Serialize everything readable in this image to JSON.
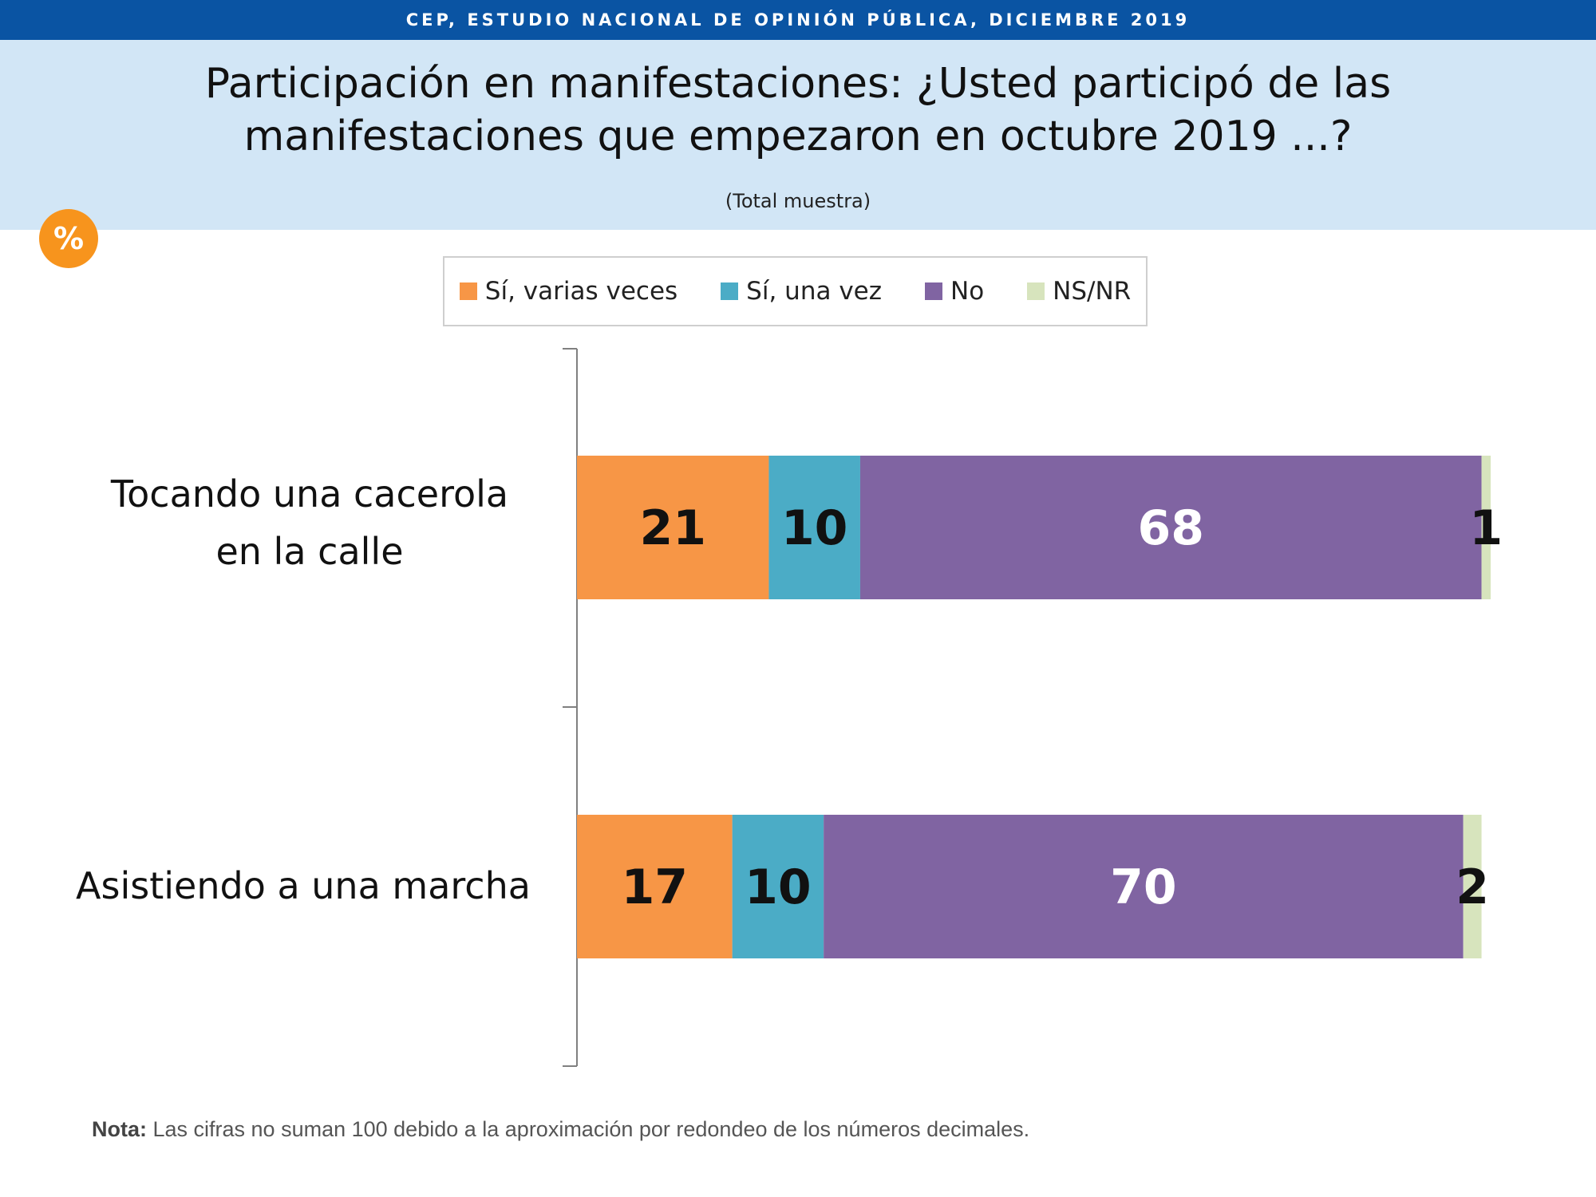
{
  "header": {
    "top_bar": "CEP, ESTUDIO NACIONAL DE OPINIÓN PÚBLICA, DICIEMBRE 2019",
    "title": "Participación en manifestaciones: ¿Usted participó de las manifestaciones que empezaron en octubre 2019 ...?",
    "subtitle": "(Total muestra)",
    "badge": "%"
  },
  "legend": [
    {
      "label": "Sí, varias veces",
      "color": "#f79646"
    },
    {
      "label": "Sí, una vez",
      "color": "#4bacc6"
    },
    {
      "label": "No",
      "color": "#8064a2"
    },
    {
      "label": "NS/NR",
      "color": "#d7e4bd"
    }
  ],
  "chart_data": {
    "type": "bar",
    "orientation": "horizontal",
    "stacked": true,
    "categories": [
      "Tocando una cacerola en la calle",
      "Asistiendo a una marcha"
    ],
    "series": [
      {
        "name": "Sí, varias veces",
        "values": [
          21,
          17
        ],
        "color": "#f79646"
      },
      {
        "name": "Sí, una vez",
        "values": [
          10,
          10
        ],
        "color": "#4bacc6"
      },
      {
        "name": "No",
        "values": [
          68,
          70
        ],
        "color": "#8064a2"
      },
      {
        "name": "NS/NR",
        "values": [
          1,
          2
        ],
        "color": "#d7e4bd"
      }
    ],
    "data_label_colors": [
      "#111111",
      "#111111",
      "#ffffff",
      "#111111"
    ],
    "xlim": [
      0,
      100
    ],
    "legend_position": "top",
    "grid": false
  },
  "note": {
    "label": "Nota:",
    "text": " Las cifras no suman 100 debido a la aproximación por redondeo de los números decimales."
  }
}
